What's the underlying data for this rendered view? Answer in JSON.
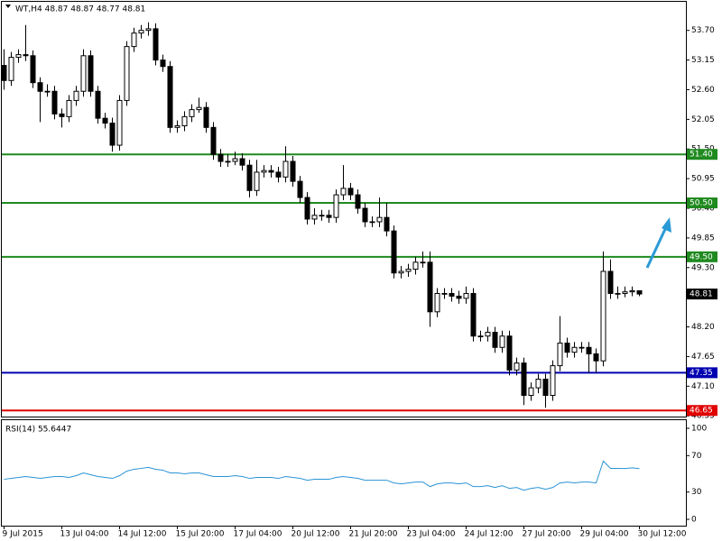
{
  "chart_data": [
    {
      "type": "candlestick",
      "title": "WT,H4  48.87 48.87 48.77 48.81",
      "categories": [
        "9 Jul 2015",
        null,
        null,
        null,
        null,
        null,
        null,
        null,
        "13 Jul 04:00",
        null,
        null,
        null,
        null,
        null,
        null,
        null,
        "14 Jul 12:00",
        null,
        null,
        null,
        null,
        null,
        null,
        null,
        "15 Jul 20:00",
        null,
        null,
        null,
        null,
        null,
        null,
        null,
        "17 Jul 04:00",
        null,
        null,
        null,
        null,
        null,
        null,
        null,
        "20 Jul 12:00",
        null,
        null,
        null,
        null,
        null,
        null,
        null,
        "21 Jul 20:00",
        null,
        null,
        null,
        null,
        null,
        null,
        null,
        "23 Jul 04:00",
        null,
        null,
        null,
        null,
        null,
        null,
        null,
        "24 Jul 12:00",
        null,
        null,
        null,
        null,
        null,
        null,
        null,
        "27 Jul 20:00",
        null,
        null,
        null,
        null,
        null,
        null,
        null,
        "29 Jul 04:00",
        null,
        null,
        null,
        null,
        null,
        null,
        null,
        "30 Jul 12:00"
      ],
      "candles": [
        [
          53.05,
          53.35,
          52.6,
          52.77
        ],
        [
          52.77,
          53.3,
          52.67,
          53.2
        ],
        [
          53.2,
          53.35,
          53.1,
          53.25
        ],
        [
          53.25,
          53.8,
          53.13,
          53.23
        ],
        [
          53.23,
          53.33,
          52.63,
          52.73
        ],
        [
          52.73,
          52.83,
          52.0,
          52.57
        ],
        [
          52.57,
          52.7,
          52.47,
          52.57
        ],
        [
          52.57,
          52.67,
          52.05,
          52.15
        ],
        [
          52.15,
          52.25,
          51.9,
          52.1
        ],
        [
          52.1,
          52.5,
          52.0,
          52.4
        ],
        [
          52.4,
          52.67,
          52.3,
          52.57
        ],
        [
          52.57,
          53.35,
          52.47,
          53.23
        ],
        [
          53.23,
          53.33,
          52.47,
          52.57
        ],
        [
          52.57,
          52.67,
          51.97,
          52.07
        ],
        [
          52.07,
          52.17,
          51.88,
          51.98
        ],
        [
          51.98,
          52.08,
          51.45,
          51.57
        ],
        [
          51.57,
          52.5,
          51.47,
          52.4
        ],
        [
          52.4,
          53.5,
          52.3,
          53.4
        ],
        [
          53.4,
          53.75,
          53.3,
          53.65
        ],
        [
          53.65,
          53.8,
          53.55,
          53.7
        ],
        [
          53.7,
          53.85,
          53.6,
          53.73
        ],
        [
          53.73,
          53.83,
          53.05,
          53.15
        ],
        [
          53.15,
          53.25,
          52.93,
          53.03
        ],
        [
          53.03,
          53.13,
          51.8,
          51.9
        ],
        [
          51.9,
          52.03,
          51.8,
          51.93
        ],
        [
          51.93,
          52.2,
          51.83,
          52.1
        ],
        [
          52.1,
          52.33,
          52.0,
          52.23
        ],
        [
          52.23,
          52.45,
          52.17,
          52.27
        ],
        [
          52.27,
          52.37,
          51.8,
          51.9
        ],
        [
          51.9,
          52.0,
          51.3,
          51.4
        ],
        [
          51.4,
          51.5,
          51.17,
          51.27
        ],
        [
          51.27,
          51.4,
          51.17,
          51.27
        ],
        [
          51.27,
          51.45,
          51.2,
          51.32
        ],
        [
          51.32,
          51.42,
          51.1,
          51.2
        ],
        [
          51.2,
          51.3,
          50.6,
          50.73
        ],
        [
          50.73,
          51.3,
          50.63,
          51.07
        ],
        [
          51.07,
          51.2,
          50.97,
          51.1
        ],
        [
          51.1,
          51.2,
          50.97,
          51.07
        ],
        [
          51.07,
          51.17,
          50.88,
          50.98
        ],
        [
          50.98,
          51.55,
          50.88,
          51.27
        ],
        [
          51.27,
          51.37,
          50.8,
          50.9
        ],
        [
          50.9,
          51.0,
          50.5,
          50.6
        ],
        [
          50.6,
          50.7,
          50.1,
          50.2
        ],
        [
          50.2,
          50.4,
          50.1,
          50.27
        ],
        [
          50.27,
          50.37,
          50.17,
          50.27
        ],
        [
          50.27,
          50.37,
          50.13,
          50.23
        ],
        [
          50.23,
          50.75,
          50.13,
          50.65
        ],
        [
          50.65,
          51.2,
          50.55,
          50.77
        ],
        [
          50.77,
          50.87,
          50.55,
          50.65
        ],
        [
          50.65,
          50.75,
          50.3,
          50.4
        ],
        [
          50.4,
          50.5,
          50.05,
          50.15
        ],
        [
          50.15,
          50.25,
          50.05,
          50.15
        ],
        [
          50.15,
          50.6,
          50.05,
          50.23
        ],
        [
          50.23,
          50.5,
          49.88,
          49.98
        ],
        [
          49.98,
          50.08,
          49.1,
          49.2
        ],
        [
          49.2,
          49.33,
          49.1,
          49.23
        ],
        [
          49.23,
          49.37,
          49.13,
          49.27
        ],
        [
          49.27,
          49.5,
          49.17,
          49.4
        ],
        [
          49.4,
          49.6,
          49.3,
          49.4
        ],
        [
          49.4,
          49.6,
          48.2,
          48.48
        ],
        [
          48.48,
          48.92,
          48.38,
          48.82
        ],
        [
          48.82,
          48.92,
          48.72,
          48.82
        ],
        [
          48.82,
          48.92,
          48.67,
          48.77
        ],
        [
          48.77,
          48.87,
          48.63,
          48.73
        ],
        [
          48.73,
          48.95,
          48.63,
          48.82
        ],
        [
          48.82,
          48.92,
          47.93,
          48.03
        ],
        [
          48.03,
          48.13,
          47.93,
          48.03
        ],
        [
          48.03,
          48.2,
          47.93,
          48.1
        ],
        [
          48.1,
          48.2,
          47.72,
          47.82
        ],
        [
          47.82,
          48.13,
          47.72,
          48.03
        ],
        [
          48.03,
          48.13,
          47.3,
          47.4
        ],
        [
          47.4,
          47.63,
          47.3,
          47.53
        ],
        [
          47.53,
          47.63,
          46.75,
          46.93
        ],
        [
          46.93,
          47.17,
          46.83,
          47.07
        ],
        [
          47.07,
          47.33,
          46.97,
          47.23
        ],
        [
          47.23,
          47.33,
          46.7,
          46.93
        ],
        [
          46.93,
          47.58,
          46.83,
          47.48
        ],
        [
          47.48,
          48.4,
          47.38,
          47.9
        ],
        [
          47.9,
          48.0,
          47.63,
          47.73
        ],
        [
          47.73,
          47.92,
          47.63,
          47.82
        ],
        [
          47.82,
          47.92,
          47.72,
          47.82
        ],
        [
          47.82,
          47.92,
          47.35,
          47.7
        ],
        [
          47.7,
          47.8,
          47.35,
          47.57
        ],
        [
          47.57,
          49.6,
          47.47,
          49.23
        ],
        [
          49.23,
          49.45,
          48.72,
          48.82
        ],
        [
          48.82,
          48.95,
          48.72,
          48.82
        ],
        [
          48.82,
          48.95,
          48.75,
          48.85
        ],
        [
          48.85,
          48.95,
          48.77,
          48.87
        ],
        [
          48.87,
          48.87,
          48.77,
          48.81
        ]
      ],
      "ylim": [
        46.52,
        54.23
      ],
      "yticks": [
        {
          "value": 53.7,
          "label": "53.70"
        },
        53.15,
        {
          "value": 52.6,
          "label": "52.60"
        },
        52.05,
        {
          "value": 51.5,
          "label": "51.50"
        },
        50.95,
        {
          "value": 50.4,
          "label": "50.40"
        },
        49.85,
        {
          "value": 49.3,
          "label": "49.30"
        },
        48.75,
        {
          "value": 48.2,
          "label": "48.20"
        },
        47.65,
        {
          "value": 47.1,
          "label": "47.10"
        },
        46.55
      ],
      "levels": [
        {
          "value": 51.4,
          "label": "51.40",
          "color": "#1f8a1f"
        },
        {
          "value": 50.5,
          "label": "50.50",
          "color": "#1f8a1f"
        },
        {
          "value": 49.5,
          "label": "49.50",
          "color": "#1f8a1f"
        },
        {
          "value": 47.35,
          "color": "#0000b0"
        },
        {
          "value": 46.65,
          "color": "#e00000"
        }
      ],
      "bull_color": "#ffffff",
      "bear_color": "#000000"
    },
    {
      "type": "line",
      "title": "RSI(14) 55.6447",
      "values": [
        44,
        45,
        46,
        47,
        46,
        45,
        46,
        47,
        47,
        46,
        48,
        51,
        49,
        47,
        46,
        45,
        48,
        53,
        55,
        56,
        57,
        55,
        54,
        51,
        51,
        50,
        51,
        51,
        49,
        47,
        47,
        47,
        48,
        47,
        45,
        46,
        46,
        46,
        45,
        47,
        46,
        45,
        43,
        44,
        44,
        44,
        46,
        47,
        46,
        45,
        43,
        43,
        43,
        43,
        40,
        39,
        40,
        41,
        41,
        36,
        39,
        40,
        40,
        39,
        40,
        36,
        36,
        37,
        35,
        37,
        34,
        35,
        32,
        34,
        35,
        33,
        35,
        40,
        41,
        40,
        41,
        41,
        40,
        64,
        56,
        56,
        55.8,
        56.5,
        55.6447
      ],
      "color": "#2a93d5",
      "ylim": [
        0,
        100
      ],
      "yticks": [
        100,
        70,
        30,
        0
      ]
    }
  ]
}
